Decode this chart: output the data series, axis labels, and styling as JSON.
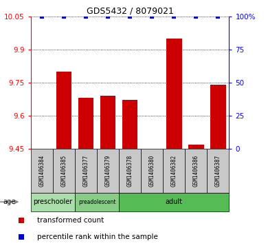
{
  "title": "GDS5432 / 8079021",
  "samples": [
    "GSM1406384",
    "GSM1406385",
    "GSM1406377",
    "GSM1406379",
    "GSM1406378",
    "GSM1406380",
    "GSM1406382",
    "GSM1406386",
    "GSM1406387"
  ],
  "bar_values": [
    9.45,
    9.8,
    9.68,
    9.69,
    9.67,
    9.45,
    9.95,
    9.47,
    9.74
  ],
  "percentile_values": [
    100,
    100,
    100,
    100,
    100,
    100,
    100,
    100,
    100
  ],
  "ymin": 9.45,
  "ymax": 10.05,
  "yticks": [
    9.45,
    9.6,
    9.75,
    9.9,
    10.05
  ],
  "ytick_labels": [
    "9.45",
    "9.6",
    "9.75",
    "9.9",
    "10.05"
  ],
  "right_yticks": [
    0,
    25,
    50,
    75,
    100
  ],
  "right_ytick_labels": [
    "0",
    "25",
    "50",
    "75",
    "100%"
  ],
  "grid_lines": [
    9.6,
    9.75,
    9.9,
    10.05
  ],
  "bar_color": "#cc0000",
  "percentile_color": "#0000cc",
  "age_groups": [
    {
      "label": "preschooler",
      "start": 0,
      "end": 2,
      "color": "#aaddaa"
    },
    {
      "label": "preadolescent",
      "start": 2,
      "end": 4,
      "color": "#88cc88"
    },
    {
      "label": "adult",
      "start": 4,
      "end": 9,
      "color": "#55bb55"
    }
  ],
  "age_label": "age",
  "legend_items": [
    {
      "label": "transformed count",
      "color": "#cc0000"
    },
    {
      "label": "percentile rank within the sample",
      "color": "#0000cc"
    }
  ],
  "bar_width": 0.7,
  "baseline": 9.45,
  "label_box_color": "#c8c8c8",
  "sample_fontsize": 5.5,
  "ytick_fontsize": 7.5,
  "title_fontsize": 9
}
